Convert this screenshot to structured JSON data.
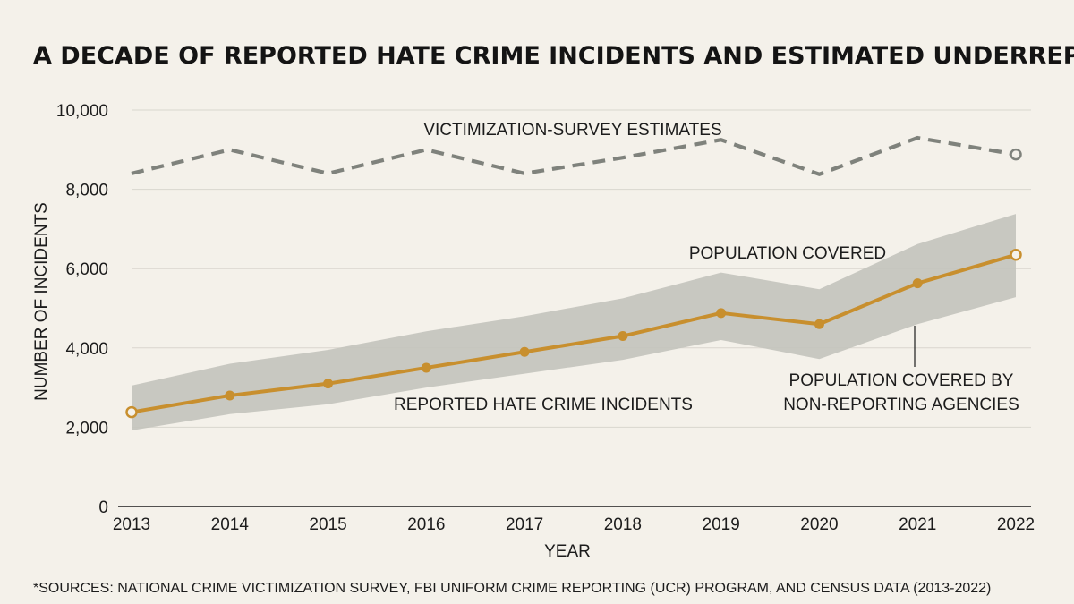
{
  "chart_data": {
    "type": "line",
    "title": "A DECADE OF REPORTED HATE CRIME INCIDENTS AND ESTIMATED UNDERREPORTING",
    "xlabel": "YEAR",
    "ylabel": "NUMBER OF INCIDENTS",
    "x": [
      "2013",
      "2014",
      "2015",
      "2016",
      "2017",
      "2018",
      "2019",
      "2020",
      "2021",
      "2022"
    ],
    "ylim": [
      0,
      10000
    ],
    "yticks": [
      0,
      2000,
      4000,
      6000,
      8000,
      10000
    ],
    "ytick_labels": [
      "0",
      "2,000",
      "4,000",
      "6,000",
      "8,000",
      "10,000"
    ],
    "grid": true,
    "series": [
      {
        "name": "VICTIMIZATION-SURVEY ESTIMATES",
        "style": "dashed",
        "color": "#7f827c",
        "values": [
          8400,
          9000,
          8400,
          9000,
          8400,
          8800,
          9250,
          8380,
          9300,
          8880
        ]
      },
      {
        "name": "REPORTED HATE CRIME INCIDENTS",
        "style": "solid",
        "color": "#c88f2e",
        "values": [
          2380,
          2800,
          3100,
          3500,
          3900,
          4300,
          4880,
          4600,
          5630,
          6350
        ]
      }
    ],
    "band": {
      "color": "#c3c3bd",
      "upper": [
        3050,
        3600,
        3950,
        4420,
        4800,
        5250,
        5900,
        5480,
        6620,
        7380
      ],
      "lower": [
        1920,
        2330,
        2580,
        3000,
        3350,
        3700,
        4200,
        3720,
        4600,
        5280
      ]
    },
    "annotations": [
      {
        "text": "VICTIMIZATION-SURVEY ESTIMATES"
      },
      {
        "text": "POPULATION COVERED"
      },
      {
        "text": "REPORTED HATE CRIME INCIDENTS"
      },
      {
        "text_lines": [
          "POPULATION COVERED BY",
          "NON-REPORTING AGENCIES"
        ]
      }
    ],
    "source": "*SOURCES: NATIONAL CRIME VICTIMIZATION SURVEY, FBI UNIFORM CRIME REPORTING (UCR) PROGRAM, AND CENSUS DATA (2013-2022)"
  }
}
